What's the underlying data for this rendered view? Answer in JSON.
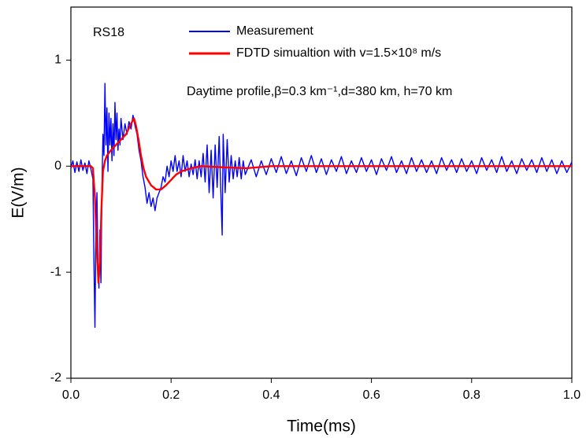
{
  "chart_data": {
    "type": "line",
    "annotations": [
      "RS18",
      "Daytime profile,β=0.3 km⁻¹,d=380 km, h=70 km"
    ],
    "xlabel": "Time(ms)",
    "ylabel": "E(V/m)",
    "xlim": [
      0,
      1
    ],
    "ylim": [
      -2,
      1.5
    ],
    "xticks": [
      {
        "value": 0,
        "label": "0.0"
      },
      0.2,
      0.4,
      0.6,
      0.8,
      {
        "value": 1,
        "label": "1.0"
      }
    ],
    "yticks": [
      -2,
      -1,
      0,
      1
    ],
    "grid": false,
    "series": [
      {
        "name": "Measurement",
        "color": "#0000ff",
        "x": [
          0,
          0.004,
          0.008,
          0.012,
          0.016,
          0.02,
          0.024,
          0.028,
          0.032,
          0.036,
          0.04,
          0.044,
          0.046,
          0.048,
          0.05,
          0.052,
          0.054,
          0.056,
          0.058,
          0.06,
          0.062,
          0.064,
          0.066,
          0.068,
          0.07,
          0.072,
          0.074,
          0.076,
          0.078,
          0.08,
          0.082,
          0.084,
          0.086,
          0.088,
          0.09,
          0.092,
          0.094,
          0.096,
          0.098,
          0.1,
          0.104,
          0.108,
          0.112,
          0.116,
          0.12,
          0.124,
          0.128,
          0.132,
          0.136,
          0.14,
          0.144,
          0.148,
          0.152,
          0.156,
          0.16,
          0.164,
          0.168,
          0.172,
          0.176,
          0.18,
          0.184,
          0.188,
          0.192,
          0.196,
          0.2,
          0.204,
          0.208,
          0.212,
          0.216,
          0.22,
          0.224,
          0.228,
          0.232,
          0.236,
          0.24,
          0.244,
          0.248,
          0.252,
          0.256,
          0.26,
          0.264,
          0.268,
          0.272,
          0.276,
          0.28,
          0.284,
          0.288,
          0.292,
          0.296,
          0.3,
          0.302,
          0.304,
          0.308,
          0.312,
          0.316,
          0.32,
          0.324,
          0.328,
          0.332,
          0.336,
          0.34,
          0.344,
          0.348,
          0.36,
          0.37,
          0.38,
          0.39,
          0.4,
          0.41,
          0.42,
          0.43,
          0.44,
          0.45,
          0.46,
          0.47,
          0.48,
          0.49,
          0.5,
          0.51,
          0.52,
          0.53,
          0.54,
          0.55,
          0.56,
          0.57,
          0.58,
          0.59,
          0.6,
          0.61,
          0.62,
          0.63,
          0.64,
          0.65,
          0.66,
          0.67,
          0.68,
          0.69,
          0.7,
          0.71,
          0.72,
          0.73,
          0.74,
          0.75,
          0.76,
          0.77,
          0.78,
          0.79,
          0.8,
          0.81,
          0.82,
          0.83,
          0.84,
          0.85,
          0.86,
          0.87,
          0.88,
          0.89,
          0.9,
          0.91,
          0.92,
          0.93,
          0.94,
          0.95,
          0.96,
          0.97,
          0.98,
          0.99,
          1
        ],
        "values": [
          -0.02,
          0.05,
          -0.06,
          0.04,
          -0.05,
          0.06,
          -0.04,
          0.03,
          -0.07,
          0.05,
          -0.03,
          -0.12,
          -0.9,
          -1.52,
          -0.6,
          -0.25,
          -0.9,
          -1.15,
          -0.6,
          -1.1,
          -0.2,
          0.3,
          0.1,
          0.78,
          0.2,
          0.55,
          -0.05,
          0.5,
          0.2,
          0.45,
          0.05,
          0.4,
          0.1,
          0.6,
          0.25,
          0.5,
          0.15,
          0.35,
          0.2,
          0.45,
          0.25,
          0.4,
          0.3,
          0.42,
          0.35,
          0.48,
          0.38,
          0.3,
          0.15,
          0.05,
          -0.1,
          -0.2,
          -0.35,
          -0.25,
          -0.38,
          -0.3,
          -0.42,
          -0.3,
          -0.25,
          -0.2,
          -0.1,
          -0.15,
          0,
          -0.1,
          0.05,
          -0.05,
          0.1,
          -0.05,
          0.05,
          -0.1,
          0.1,
          -0.05,
          0.05,
          -0.1,
          0.02,
          -0.08,
          0.06,
          -0.12,
          0.05,
          -0.1,
          0.12,
          -0.15,
          0.2,
          -0.25,
          0.15,
          -0.3,
          0.2,
          -0.2,
          0.28,
          -0.35,
          -0.65,
          0.3,
          -0.25,
          0.25,
          -0.15,
          0.1,
          -0.12,
          0.05,
          -0.1,
          0.08,
          -0.12,
          0.05,
          -0.08,
          0.06,
          -0.1,
          0.05,
          -0.08,
          0.07,
          -0.06,
          0.09,
          -0.07,
          0.05,
          -0.09,
          0.08,
          -0.05,
          0.1,
          -0.06,
          0.07,
          -0.08,
          0.06,
          -0.05,
          0.09,
          -0.07,
          0.05,
          -0.06,
          0.08,
          -0.05,
          0.06,
          -0.08,
          0.07,
          -0.04,
          0.09,
          -0.06,
          0.05,
          -0.07,
          0.08,
          -0.05,
          0.06,
          -0.06,
          0.05,
          -0.07,
          0.08,
          -0.04,
          0.06,
          -0.06,
          0.07,
          -0.05,
          0.05,
          -0.07,
          0.08,
          -0.04,
          0.06,
          -0.06,
          0.09,
          -0.05,
          0.05,
          -0.07,
          0.07,
          -0.04,
          0.06,
          -0.06,
          0.08,
          -0.05,
          0.06,
          -0.07,
          0.05,
          -0.06,
          0.04
        ]
      },
      {
        "name": "FDTD simualtion with v=1.5×10⁸ m/s",
        "color": "#ff0000",
        "x": [
          0,
          0.04,
          0.044,
          0.048,
          0.052,
          0.055,
          0.058,
          0.061,
          0.064,
          0.068,
          0.072,
          0.08,
          0.09,
          0.1,
          0.11,
          0.12,
          0.126,
          0.13,
          0.135,
          0.14,
          0.145,
          0.15,
          0.16,
          0.17,
          0.18,
          0.19,
          0.2,
          0.21,
          0.22,
          0.24,
          0.26,
          0.3,
          0.35,
          0.4,
          0.5,
          0.6,
          0.7,
          0.8,
          0.9,
          1
        ],
        "values": [
          0,
          0,
          -0.02,
          -0.3,
          -0.8,
          -1.1,
          -0.9,
          -0.4,
          -0.05,
          0.05,
          0.1,
          0.15,
          0.2,
          0.25,
          0.3,
          0.4,
          0.45,
          0.38,
          0.25,
          0.1,
          -0.02,
          -0.1,
          -0.18,
          -0.22,
          -0.22,
          -0.18,
          -0.13,
          -0.08,
          -0.05,
          -0.02,
          0,
          -0.01,
          -0.02,
          0,
          0,
          0,
          0,
          0,
          0,
          0
        ]
      }
    ]
  }
}
